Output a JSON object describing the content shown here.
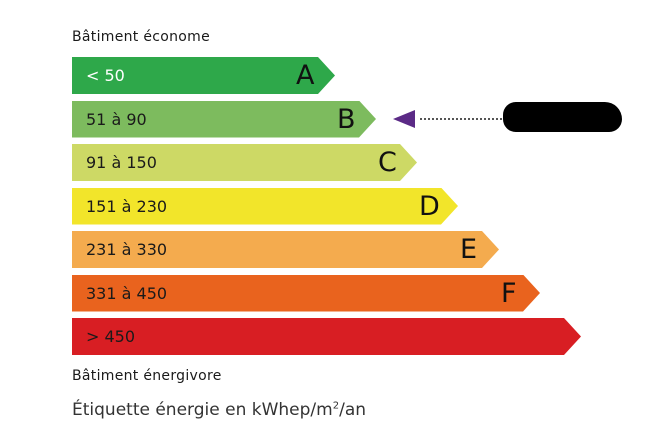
{
  "header": {
    "top_caption": "Bâtiment économe",
    "bottom_caption": "Bâtiment énergivore"
  },
  "classes": [
    {
      "range": "< 50",
      "letter": "A",
      "color": "#2ea84a",
      "text_color": "#ffffff"
    },
    {
      "range": "51 à 90",
      "letter": "B",
      "color": "#7dbb5e",
      "text_color": "#1a1a1a"
    },
    {
      "range": "91 à 150",
      "letter": "C",
      "color": "#cdd965",
      "text_color": "#1a1a1a"
    },
    {
      "range": "151 à 230",
      "letter": "D",
      "color": "#f2e52a",
      "text_color": "#1a1a1a"
    },
    {
      "range": "231 à 330",
      "letter": "E",
      "color": "#f4ab4e",
      "text_color": "#1a1a1a"
    },
    {
      "range": "331 à 450",
      "letter": "F",
      "color": "#e9631e",
      "text_color": "#1a1a1a"
    },
    {
      "range": "> 450",
      "letter": "",
      "color": "#d81e23",
      "text_color": "#1a1a1a"
    }
  ],
  "indicator": {
    "selected_class": "B",
    "color": "#5b2a86",
    "value_redacted": true
  },
  "footer": {
    "unit_prefix": "Étiquette énergie en kWhep/m",
    "unit_sup": "2",
    "unit_suffix": "/an"
  }
}
